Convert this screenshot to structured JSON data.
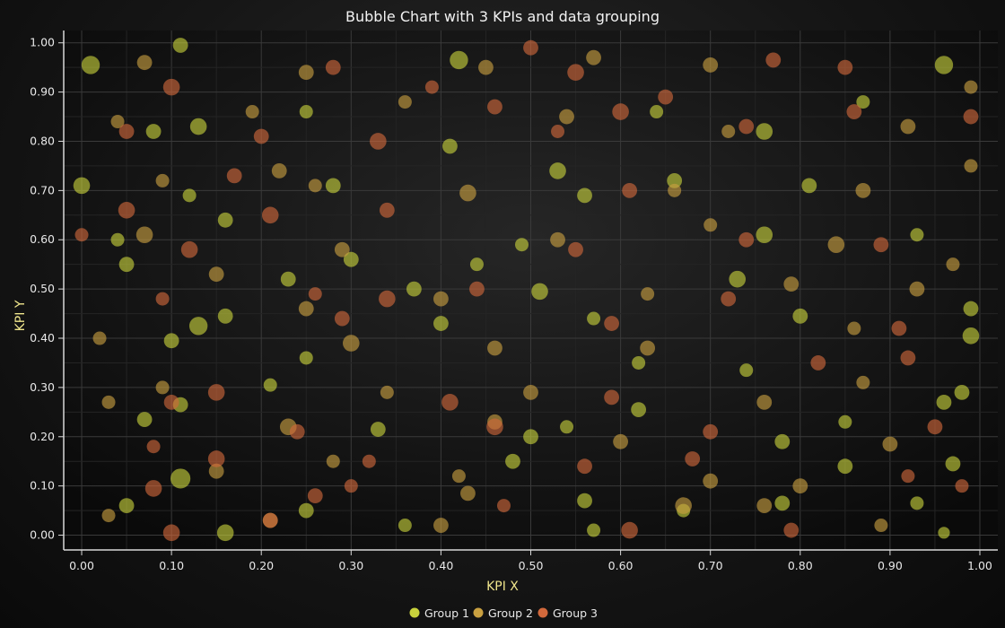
{
  "chart_data": {
    "type": "scatter",
    "title": "Bubble Chart with 3 KPIs and data grouping",
    "xlabel": "KPI X",
    "ylabel": "KPI Y",
    "xlim": [
      -0.02,
      1.02
    ],
    "ylim": [
      -0.03,
      1.025
    ],
    "x_ticks": [
      "0.00",
      "0.10",
      "0.20",
      "0.30",
      "0.40",
      "0.50",
      "0.60",
      "0.70",
      "0.80",
      "0.90",
      "1.00"
    ],
    "y_ticks": [
      "0.00",
      "0.10",
      "0.20",
      "0.30",
      "0.40",
      "0.50",
      "0.60",
      "0.70",
      "0.80",
      "0.90",
      "1.00"
    ],
    "grid": true,
    "legend_position": "bottom-center",
    "series": [
      {
        "name": "Group 1",
        "color": "#c8d23c",
        "points": [
          {
            "x": 0.01,
            "y": 0.955,
            "size": 0.8
          },
          {
            "x": 0.11,
            "y": 0.995,
            "size": 0.6
          },
          {
            "x": 0.42,
            "y": 0.965,
            "size": 0.8
          },
          {
            "x": 0.96,
            "y": 0.955,
            "size": 0.8
          },
          {
            "x": 0.25,
            "y": 0.86,
            "size": 0.5
          },
          {
            "x": 0.64,
            "y": 0.86,
            "size": 0.5
          },
          {
            "x": 0.87,
            "y": 0.88,
            "size": 0.5
          },
          {
            "x": 0.08,
            "y": 0.82,
            "size": 0.6
          },
          {
            "x": 0.13,
            "y": 0.83,
            "size": 0.7
          },
          {
            "x": 0.41,
            "y": 0.79,
            "size": 0.6
          },
          {
            "x": 0.53,
            "y": 0.74,
            "size": 0.7
          },
          {
            "x": 0.76,
            "y": 0.82,
            "size": 0.7
          },
          {
            "x": 0.0,
            "y": 0.71,
            "size": 0.7
          },
          {
            "x": 0.12,
            "y": 0.69,
            "size": 0.5
          },
          {
            "x": 0.28,
            "y": 0.71,
            "size": 0.6
          },
          {
            "x": 0.56,
            "y": 0.69,
            "size": 0.6
          },
          {
            "x": 0.66,
            "y": 0.72,
            "size": 0.6
          },
          {
            "x": 0.81,
            "y": 0.71,
            "size": 0.6
          },
          {
            "x": 0.04,
            "y": 0.6,
            "size": 0.5
          },
          {
            "x": 0.16,
            "y": 0.64,
            "size": 0.6
          },
          {
            "x": 0.3,
            "y": 0.56,
            "size": 0.6
          },
          {
            "x": 0.49,
            "y": 0.59,
            "size": 0.5
          },
          {
            "x": 0.76,
            "y": 0.61,
            "size": 0.7
          },
          {
            "x": 0.93,
            "y": 0.61,
            "size": 0.5
          },
          {
            "x": 0.05,
            "y": 0.55,
            "size": 0.6
          },
          {
            "x": 0.23,
            "y": 0.52,
            "size": 0.6
          },
          {
            "x": 0.37,
            "y": 0.5,
            "size": 0.6
          },
          {
            "x": 0.51,
            "y": 0.495,
            "size": 0.7
          },
          {
            "x": 0.73,
            "y": 0.52,
            "size": 0.7
          },
          {
            "x": 0.99,
            "y": 0.46,
            "size": 0.6
          },
          {
            "x": 0.13,
            "y": 0.425,
            "size": 0.8
          },
          {
            "x": 0.16,
            "y": 0.445,
            "size": 0.6
          },
          {
            "x": 0.4,
            "y": 0.43,
            "size": 0.6
          },
          {
            "x": 0.57,
            "y": 0.44,
            "size": 0.5
          },
          {
            "x": 0.8,
            "y": 0.445,
            "size": 0.6
          },
          {
            "x": 0.99,
            "y": 0.405,
            "size": 0.7
          },
          {
            "x": 0.1,
            "y": 0.395,
            "size": 0.6
          },
          {
            "x": 0.25,
            "y": 0.36,
            "size": 0.5
          },
          {
            "x": 0.62,
            "y": 0.35,
            "size": 0.5
          },
          {
            "x": 0.74,
            "y": 0.335,
            "size": 0.5
          },
          {
            "x": 0.98,
            "y": 0.29,
            "size": 0.6
          },
          {
            "x": 0.11,
            "y": 0.265,
            "size": 0.6
          },
          {
            "x": 0.21,
            "y": 0.305,
            "size": 0.5
          },
          {
            "x": 0.62,
            "y": 0.255,
            "size": 0.6
          },
          {
            "x": 0.96,
            "y": 0.27,
            "size": 0.6
          },
          {
            "x": 0.07,
            "y": 0.235,
            "size": 0.6
          },
          {
            "x": 0.33,
            "y": 0.215,
            "size": 0.6
          },
          {
            "x": 0.54,
            "y": 0.22,
            "size": 0.5
          },
          {
            "x": 0.78,
            "y": 0.19,
            "size": 0.6
          },
          {
            "x": 0.85,
            "y": 0.23,
            "size": 0.5
          },
          {
            "x": 0.11,
            "y": 0.115,
            "size": 0.9
          },
          {
            "x": 0.48,
            "y": 0.15,
            "size": 0.6
          },
          {
            "x": 0.5,
            "y": 0.2,
            "size": 0.6
          },
          {
            "x": 0.85,
            "y": 0.14,
            "size": 0.6
          },
          {
            "x": 0.97,
            "y": 0.145,
            "size": 0.6
          },
          {
            "x": 0.05,
            "y": 0.06,
            "size": 0.6
          },
          {
            "x": 0.25,
            "y": 0.05,
            "size": 0.6
          },
          {
            "x": 0.56,
            "y": 0.07,
            "size": 0.6
          },
          {
            "x": 0.78,
            "y": 0.065,
            "size": 0.6
          },
          {
            "x": 0.93,
            "y": 0.065,
            "size": 0.5
          },
          {
            "x": 0.16,
            "y": 0.005,
            "size": 0.7
          },
          {
            "x": 0.36,
            "y": 0.02,
            "size": 0.5
          },
          {
            "x": 0.57,
            "y": 0.01,
            "size": 0.5
          },
          {
            "x": 0.67,
            "y": 0.05,
            "size": 0.5
          },
          {
            "x": 0.96,
            "y": 0.005,
            "size": 0.4
          },
          {
            "x": 0.44,
            "y": 0.55,
            "size": 0.5
          }
        ]
      },
      {
        "name": "Group 2",
        "color": "#c9a040",
        "points": [
          {
            "x": 0.07,
            "y": 0.96,
            "size": 0.6
          },
          {
            "x": 0.25,
            "y": 0.94,
            "size": 0.6
          },
          {
            "x": 0.45,
            "y": 0.95,
            "size": 0.6
          },
          {
            "x": 0.57,
            "y": 0.97,
            "size": 0.6
          },
          {
            "x": 0.7,
            "y": 0.955,
            "size": 0.6
          },
          {
            "x": 0.99,
            "y": 0.91,
            "size": 0.5
          },
          {
            "x": 0.04,
            "y": 0.84,
            "size": 0.5
          },
          {
            "x": 0.19,
            "y": 0.86,
            "size": 0.5
          },
          {
            "x": 0.36,
            "y": 0.88,
            "size": 0.5
          },
          {
            "x": 0.54,
            "y": 0.85,
            "size": 0.6
          },
          {
            "x": 0.72,
            "y": 0.82,
            "size": 0.5
          },
          {
            "x": 0.92,
            "y": 0.83,
            "size": 0.6
          },
          {
            "x": 0.09,
            "y": 0.72,
            "size": 0.5
          },
          {
            "x": 0.22,
            "y": 0.74,
            "size": 0.6
          },
          {
            "x": 0.43,
            "y": 0.695,
            "size": 0.7
          },
          {
            "x": 0.66,
            "y": 0.7,
            "size": 0.5
          },
          {
            "x": 0.87,
            "y": 0.7,
            "size": 0.6
          },
          {
            "x": 0.99,
            "y": 0.75,
            "size": 0.5
          },
          {
            "x": 0.07,
            "y": 0.61,
            "size": 0.7
          },
          {
            "x": 0.29,
            "y": 0.58,
            "size": 0.6
          },
          {
            "x": 0.53,
            "y": 0.6,
            "size": 0.6
          },
          {
            "x": 0.7,
            "y": 0.63,
            "size": 0.5
          },
          {
            "x": 0.84,
            "y": 0.59,
            "size": 0.7
          },
          {
            "x": 0.97,
            "y": 0.55,
            "size": 0.5
          },
          {
            "x": 0.15,
            "y": 0.53,
            "size": 0.6
          },
          {
            "x": 0.25,
            "y": 0.46,
            "size": 0.6
          },
          {
            "x": 0.4,
            "y": 0.48,
            "size": 0.6
          },
          {
            "x": 0.63,
            "y": 0.49,
            "size": 0.5
          },
          {
            "x": 0.79,
            "y": 0.51,
            "size": 0.6
          },
          {
            "x": 0.93,
            "y": 0.5,
            "size": 0.6
          },
          {
            "x": 0.02,
            "y": 0.4,
            "size": 0.5
          },
          {
            "x": 0.3,
            "y": 0.39,
            "size": 0.7
          },
          {
            "x": 0.46,
            "y": 0.38,
            "size": 0.6
          },
          {
            "x": 0.63,
            "y": 0.38,
            "size": 0.6
          },
          {
            "x": 0.86,
            "y": 0.42,
            "size": 0.5
          },
          {
            "x": 0.09,
            "y": 0.3,
            "size": 0.5
          },
          {
            "x": 0.34,
            "y": 0.29,
            "size": 0.5
          },
          {
            "x": 0.5,
            "y": 0.29,
            "size": 0.6
          },
          {
            "x": 0.76,
            "y": 0.27,
            "size": 0.6
          },
          {
            "x": 0.87,
            "y": 0.31,
            "size": 0.5
          },
          {
            "x": 0.03,
            "y": 0.27,
            "size": 0.5
          },
          {
            "x": 0.23,
            "y": 0.22,
            "size": 0.7
          },
          {
            "x": 0.46,
            "y": 0.23,
            "size": 0.6
          },
          {
            "x": 0.6,
            "y": 0.19,
            "size": 0.6
          },
          {
            "x": 0.9,
            "y": 0.185,
            "size": 0.6
          },
          {
            "x": 0.15,
            "y": 0.13,
            "size": 0.6
          },
          {
            "x": 0.28,
            "y": 0.15,
            "size": 0.5
          },
          {
            "x": 0.42,
            "y": 0.12,
            "size": 0.5
          },
          {
            "x": 0.7,
            "y": 0.11,
            "size": 0.6
          },
          {
            "x": 0.8,
            "y": 0.1,
            "size": 0.6
          },
          {
            "x": 0.03,
            "y": 0.04,
            "size": 0.5
          },
          {
            "x": 0.21,
            "y": 0.03,
            "size": 0.6
          },
          {
            "x": 0.43,
            "y": 0.085,
            "size": 0.6
          },
          {
            "x": 0.67,
            "y": 0.06,
            "size": 0.7
          },
          {
            "x": 0.89,
            "y": 0.02,
            "size": 0.5
          },
          {
            "x": 0.4,
            "y": 0.02,
            "size": 0.6
          },
          {
            "x": 0.76,
            "y": 0.06,
            "size": 0.6
          },
          {
            "x": 0.26,
            "y": 0.71,
            "size": 0.5
          }
        ]
      },
      {
        "name": "Group 3",
        "color": "#d2693c",
        "points": [
          {
            "x": 0.1,
            "y": 0.91,
            "size": 0.7
          },
          {
            "x": 0.28,
            "y": 0.95,
            "size": 0.6
          },
          {
            "x": 0.5,
            "y": 0.99,
            "size": 0.6
          },
          {
            "x": 0.55,
            "y": 0.94,
            "size": 0.7
          },
          {
            "x": 0.65,
            "y": 0.89,
            "size": 0.6
          },
          {
            "x": 0.77,
            "y": 0.965,
            "size": 0.6
          },
          {
            "x": 0.85,
            "y": 0.95,
            "size": 0.6
          },
          {
            "x": 0.05,
            "y": 0.82,
            "size": 0.6
          },
          {
            "x": 0.2,
            "y": 0.81,
            "size": 0.6
          },
          {
            "x": 0.33,
            "y": 0.8,
            "size": 0.7
          },
          {
            "x": 0.46,
            "y": 0.87,
            "size": 0.6
          },
          {
            "x": 0.6,
            "y": 0.86,
            "size": 0.7
          },
          {
            "x": 0.74,
            "y": 0.83,
            "size": 0.6
          },
          {
            "x": 0.86,
            "y": 0.86,
            "size": 0.6
          },
          {
            "x": 0.99,
            "y": 0.85,
            "size": 0.6
          },
          {
            "x": 0.05,
            "y": 0.66,
            "size": 0.7
          },
          {
            "x": 0.17,
            "y": 0.73,
            "size": 0.6
          },
          {
            "x": 0.21,
            "y": 0.65,
            "size": 0.7
          },
          {
            "x": 0.34,
            "y": 0.66,
            "size": 0.6
          },
          {
            "x": 0.61,
            "y": 0.7,
            "size": 0.6
          },
          {
            "x": 0.74,
            "y": 0.6,
            "size": 0.6
          },
          {
            "x": 0.89,
            "y": 0.59,
            "size": 0.6
          },
          {
            "x": 0.0,
            "y": 0.61,
            "size": 0.5
          },
          {
            "x": 0.12,
            "y": 0.58,
            "size": 0.7
          },
          {
            "x": 0.26,
            "y": 0.49,
            "size": 0.5
          },
          {
            "x": 0.34,
            "y": 0.48,
            "size": 0.7
          },
          {
            "x": 0.44,
            "y": 0.5,
            "size": 0.6
          },
          {
            "x": 0.55,
            "y": 0.58,
            "size": 0.6
          },
          {
            "x": 0.72,
            "y": 0.48,
            "size": 0.6
          },
          {
            "x": 0.91,
            "y": 0.42,
            "size": 0.6
          },
          {
            "x": 0.09,
            "y": 0.48,
            "size": 0.5
          },
          {
            "x": 0.29,
            "y": 0.44,
            "size": 0.6
          },
          {
            "x": 0.59,
            "y": 0.43,
            "size": 0.6
          },
          {
            "x": 0.82,
            "y": 0.35,
            "size": 0.6
          },
          {
            "x": 0.15,
            "y": 0.29,
            "size": 0.7
          },
          {
            "x": 0.41,
            "y": 0.27,
            "size": 0.7
          },
          {
            "x": 0.59,
            "y": 0.28,
            "size": 0.6
          },
          {
            "x": 0.92,
            "y": 0.36,
            "size": 0.6
          },
          {
            "x": 0.1,
            "y": 0.27,
            "size": 0.6
          },
          {
            "x": 0.24,
            "y": 0.21,
            "size": 0.6
          },
          {
            "x": 0.46,
            "y": 0.22,
            "size": 0.7
          },
          {
            "x": 0.7,
            "y": 0.21,
            "size": 0.6
          },
          {
            "x": 0.95,
            "y": 0.22,
            "size": 0.6
          },
          {
            "x": 0.08,
            "y": 0.18,
            "size": 0.5
          },
          {
            "x": 0.15,
            "y": 0.155,
            "size": 0.7
          },
          {
            "x": 0.32,
            "y": 0.15,
            "size": 0.5
          },
          {
            "x": 0.56,
            "y": 0.14,
            "size": 0.6
          },
          {
            "x": 0.68,
            "y": 0.155,
            "size": 0.6
          },
          {
            "x": 0.92,
            "y": 0.12,
            "size": 0.5
          },
          {
            "x": 0.08,
            "y": 0.095,
            "size": 0.7
          },
          {
            "x": 0.26,
            "y": 0.08,
            "size": 0.6
          },
          {
            "x": 0.47,
            "y": 0.06,
            "size": 0.5
          },
          {
            "x": 0.61,
            "y": 0.01,
            "size": 0.7
          },
          {
            "x": 0.79,
            "y": 0.01,
            "size": 0.6
          },
          {
            "x": 0.1,
            "y": 0.005,
            "size": 0.7
          },
          {
            "x": 0.21,
            "y": 0.03,
            "size": 0.6
          },
          {
            "x": 0.3,
            "y": 0.1,
            "size": 0.5
          },
          {
            "x": 0.98,
            "y": 0.1,
            "size": 0.5
          },
          {
            "x": 0.53,
            "y": 0.82,
            "size": 0.5
          },
          {
            "x": 0.39,
            "y": 0.91,
            "size": 0.5
          }
        ]
      }
    ]
  }
}
